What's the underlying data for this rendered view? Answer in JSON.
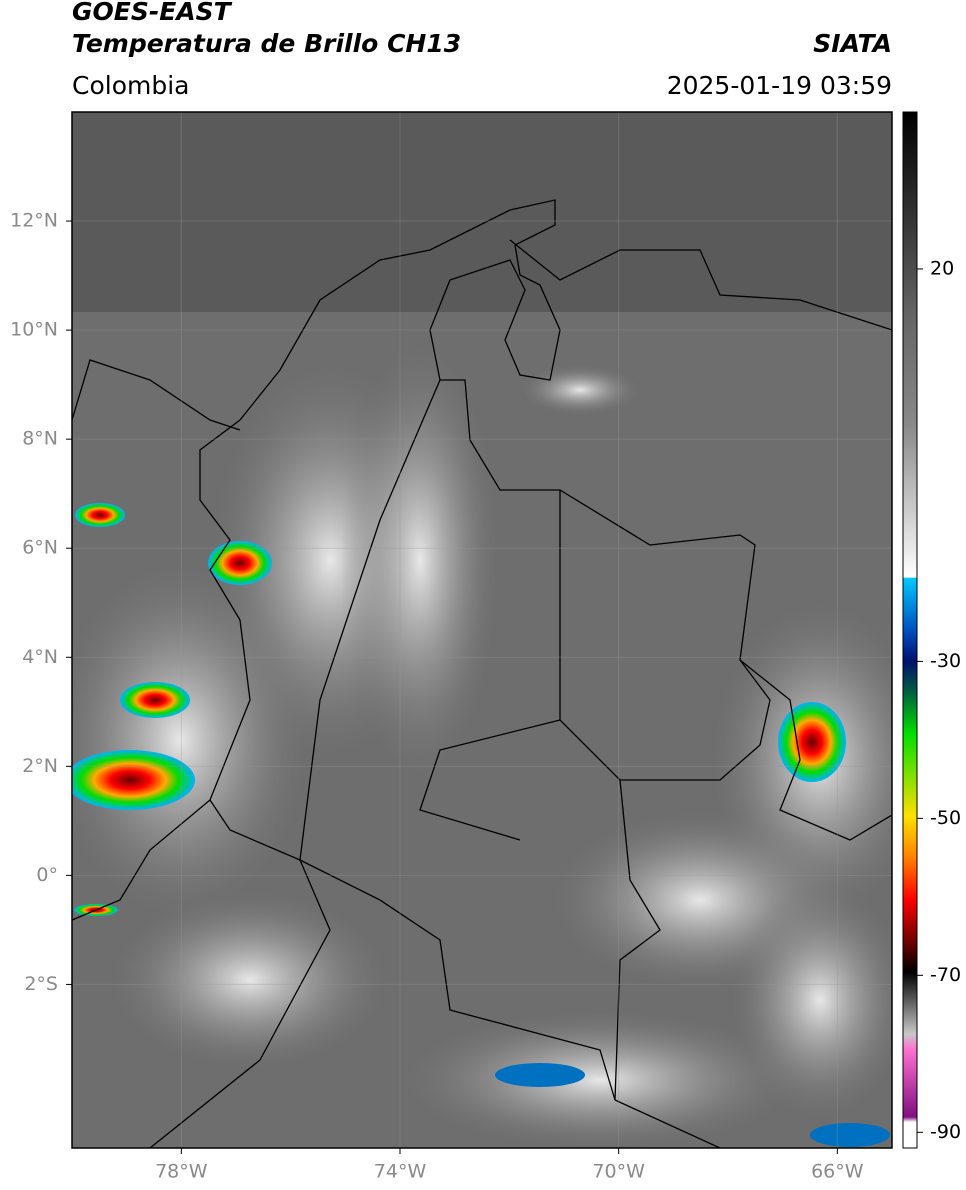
{
  "header": {
    "satellite": "GOES-EAST",
    "product": "Temperatura de Brillo CH13",
    "source": "SIATA",
    "region": "Colombia",
    "datetime": "2025-01-19 03:59"
  },
  "map": {
    "latlim": [
      -5,
      14
    ],
    "lonlim": [
      -80,
      -65
    ],
    "lat_ticks": [
      {
        "value": 12,
        "label": "12°N"
      },
      {
        "value": 10,
        "label": "10°N"
      },
      {
        "value": 8,
        "label": "8°N"
      },
      {
        "value": 6,
        "label": "6°N"
      },
      {
        "value": 4,
        "label": "4°N"
      },
      {
        "value": 2,
        "label": "2°N"
      },
      {
        "value": 0,
        "label": "0°"
      },
      {
        "value": -2,
        "label": "2°S"
      }
    ],
    "lon_ticks": [
      {
        "value": -78,
        "label": "78°W"
      },
      {
        "value": -74,
        "label": "74°W"
      },
      {
        "value": -70,
        "label": "70°W"
      },
      {
        "value": -66,
        "label": "66°W"
      }
    ]
  },
  "colorbar": {
    "clim": [
      -92,
      40
    ],
    "ticks": [
      20,
      -30,
      -50,
      -70,
      -90
    ]
  }
}
